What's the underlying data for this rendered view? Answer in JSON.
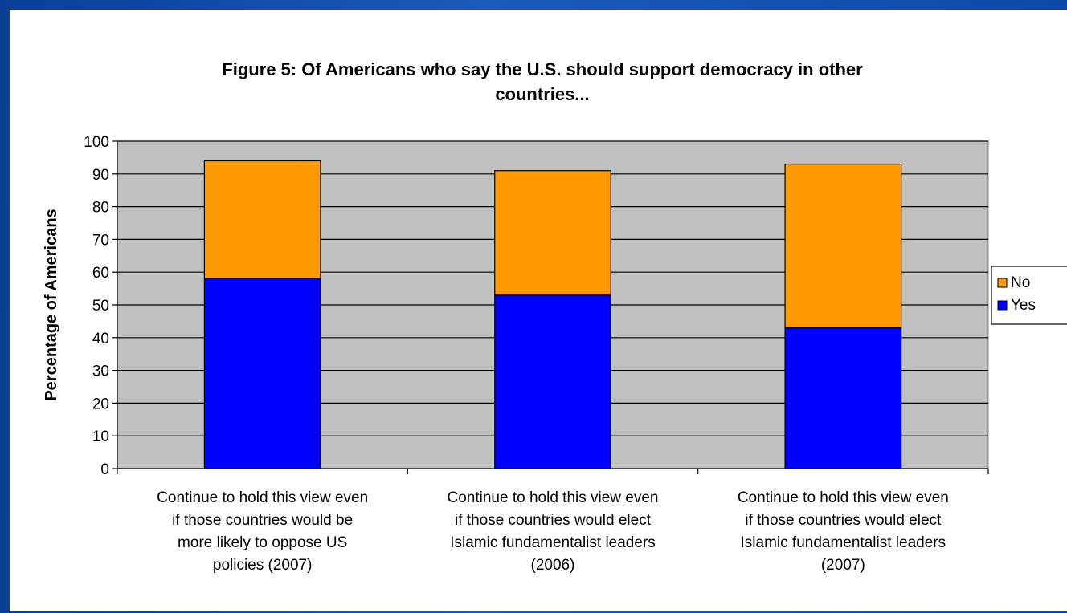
{
  "chart_data": {
    "type": "bar",
    "stacked": true,
    "title": "Figure 5: Of Americans who say the U.S. should support democracy in other countries...",
    "title_lines": [
      "Figure 5: Of Americans who say the U.S. should support democracy in other",
      "countries..."
    ],
    "ylabel": "Percentage of Americans",
    "xlabel": "",
    "ylim": [
      0,
      100
    ],
    "yticks": [
      0,
      10,
      20,
      30,
      40,
      50,
      60,
      70,
      80,
      90,
      100
    ],
    "grid": true,
    "legend_position": "right",
    "categories": [
      "Continue to hold this view even if those countries would be more likely to oppose US policies (2007)",
      "Continue to hold this view even if those countries would elect Islamic fundamentalist leaders (2006)",
      "Continue to hold this view even if those countries would elect Islamic fundamentalist leaders (2007)"
    ],
    "category_lines": [
      [
        "Continue to hold this view even",
        "if those countries would be",
        "more likely to oppose US",
        "policies (2007)"
      ],
      [
        "Continue to hold this view even",
        "if those countries would elect",
        "Islamic fundamentalist leaders",
        "(2006)"
      ],
      [
        "Continue to hold this view even",
        "if those countries would elect",
        "Islamic fundamentalist leaders",
        "(2007)"
      ]
    ],
    "series": [
      {
        "name": "Yes",
        "color": "#0000ff",
        "values": [
          58,
          53,
          43
        ]
      },
      {
        "name": "No",
        "color": "#ff9900",
        "values": [
          36,
          38,
          50
        ]
      }
    ],
    "legend_order": [
      "No",
      "Yes"
    ],
    "colors": {
      "plot_background": "#c0c0c0",
      "gridline": "#000000"
    }
  }
}
